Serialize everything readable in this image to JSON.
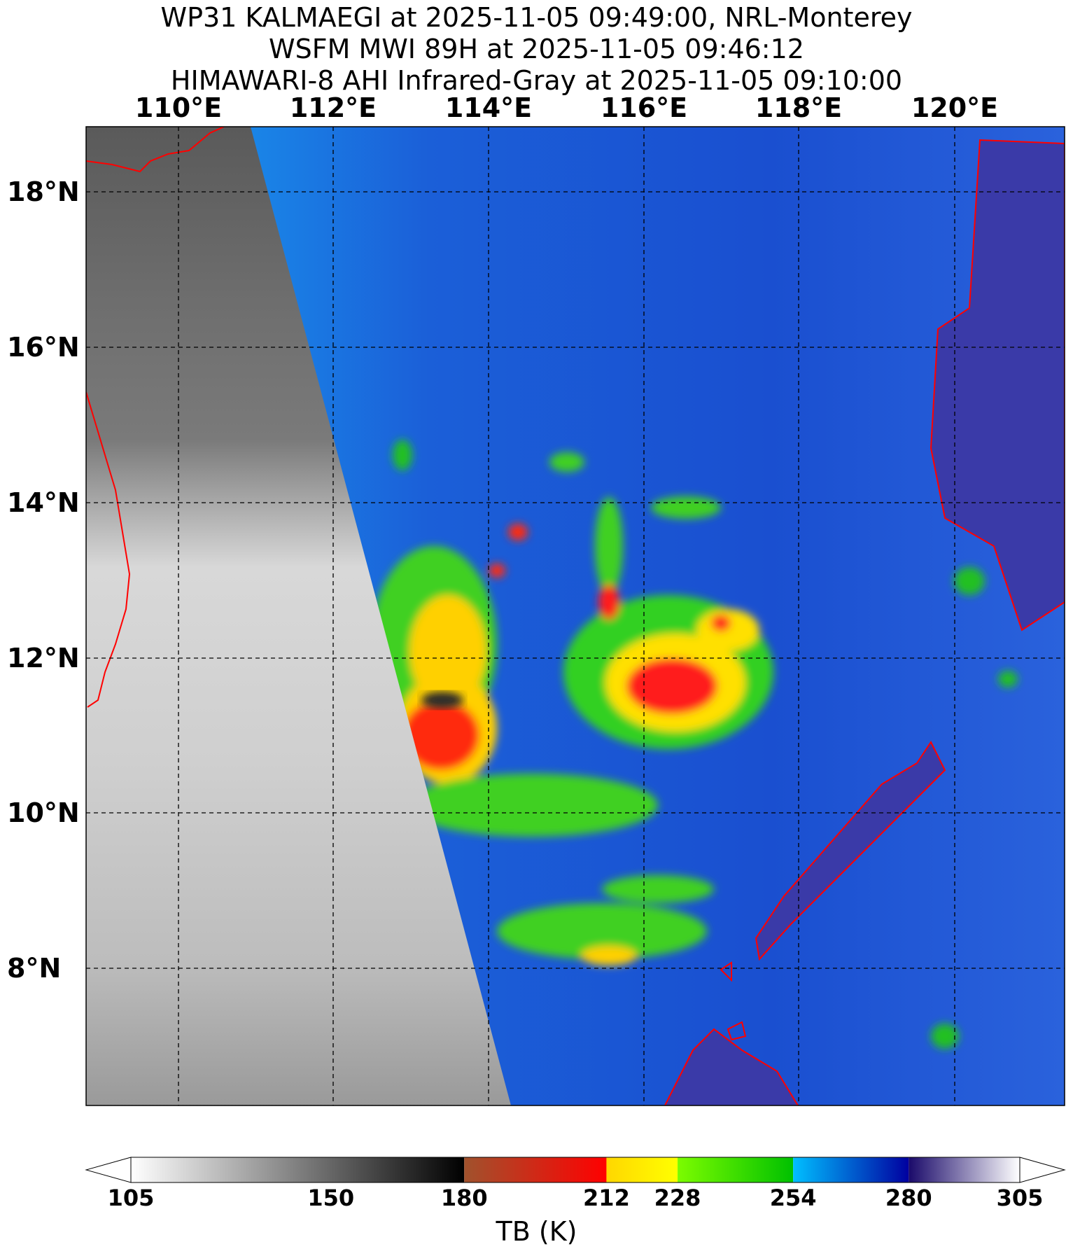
{
  "titles": [
    "WP31 KALMAEGI at 2025-11-05 09:49:00, NRL-Monterey",
    "WSFM MWI 89H at 2025-11-05 09:46:12",
    "HIMAWARI-8 AHI Infrared-Gray at 2025-11-05 09:10:00"
  ],
  "map": {
    "lon_labels": [
      "110°E",
      "112°E",
      "114°E",
      "116°E",
      "118°E",
      "120°E"
    ],
    "lat_labels": [
      "18°N",
      "16°N",
      "14°N",
      "12°N",
      "10°N",
      "8°N"
    ],
    "grid": true,
    "coastline_color": "#ff0000",
    "storm_center": {
      "lon": 116.3,
      "lat": 11.9
    }
  },
  "colorbar": {
    "label": "TB (K)",
    "ticks": [
      "105",
      "150",
      "180",
      "212",
      "228",
      "254",
      "280",
      "305"
    ],
    "tick_values": [
      105,
      150,
      180,
      212,
      228,
      254,
      280,
      305
    ],
    "segments": [
      {
        "from": 105,
        "to": 180,
        "c1": "#ffffff",
        "c2": "#000000"
      },
      {
        "from": 180,
        "to": 212,
        "c1": "#a0522d",
        "c2": "#ff0000"
      },
      {
        "from": 212,
        "to": 228,
        "c1": "#ffd700",
        "c2": "#ffff00"
      },
      {
        "from": 228,
        "to": 254,
        "c1": "#7cfc00",
        "c2": "#00c000"
      },
      {
        "from": 254,
        "to": 280,
        "c1": "#00bfff",
        "c2": "#0000a0"
      },
      {
        "from": 280,
        "to": 305,
        "c1": "#1a0a6a",
        "c2": "#ffffff"
      }
    ]
  }
}
